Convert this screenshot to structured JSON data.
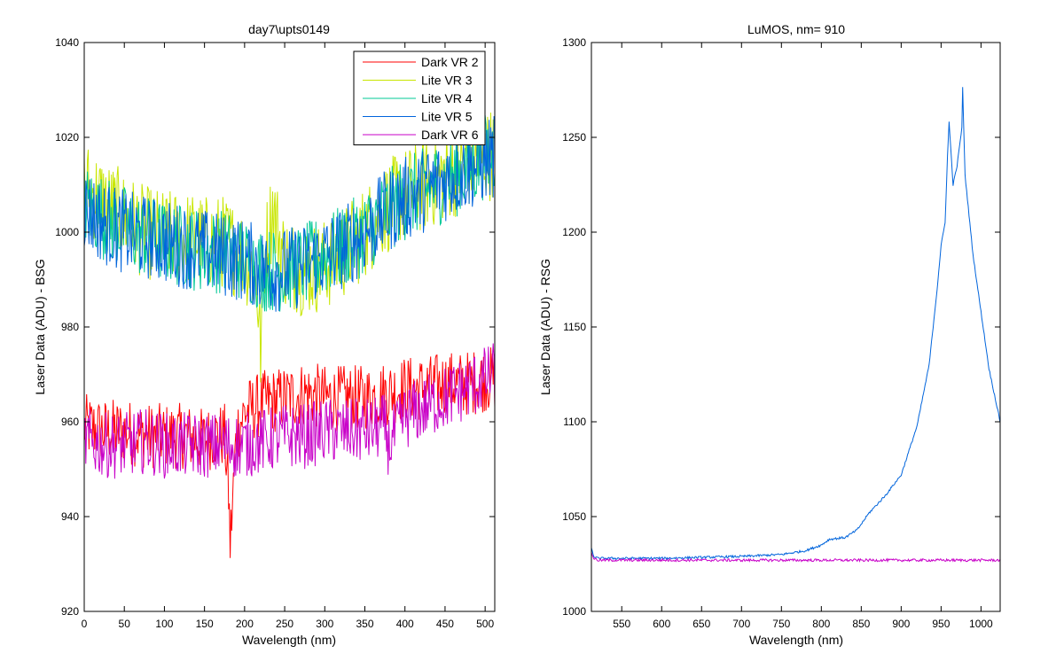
{
  "figure": {
    "background": "#ffffff"
  },
  "chart_data": [
    {
      "type": "line",
      "title": "day7\\upts0149",
      "xlabel": "Wavelength (nm)",
      "ylabel": "Laser Data (ADU) - BSG",
      "xlim": [
        0,
        512
      ],
      "ylim": [
        920,
        1040
      ],
      "xticks": [
        0,
        50,
        100,
        150,
        200,
        250,
        300,
        350,
        400,
        450,
        500
      ],
      "yticks": [
        920,
        940,
        960,
        980,
        1000,
        1020,
        1040
      ],
      "grid": false,
      "legend": {
        "placement": "top-right"
      },
      "series": [
        {
          "name": "Dark VR 2",
          "color": "#ff0000",
          "x": [
            0,
            25,
            50,
            75,
            100,
            125,
            150,
            160,
            175,
            180,
            182,
            190,
            200,
            225,
            250,
            275,
            300,
            325,
            350,
            375,
            400,
            425,
            450,
            475,
            500,
            512
          ],
          "y": [
            959,
            958,
            958,
            957,
            957,
            957,
            956,
            957,
            957,
            945,
            934,
            958,
            962,
            964,
            965,
            966,
            965,
            965,
            965,
            966,
            967,
            967,
            968,
            968,
            969,
            969
          ]
        },
        {
          "name": "Lite VR 3",
          "color": "#c8e600",
          "x": [
            0,
            25,
            50,
            75,
            100,
            125,
            150,
            175,
            200,
            215,
            220,
            225,
            235,
            250,
            275,
            300,
            325,
            350,
            375,
            400,
            425,
            450,
            475,
            500,
            512
          ],
          "y": [
            1010,
            1006,
            1003,
            1000,
            999,
            999,
            998,
            998,
            995,
            990,
            975,
            995,
            1005,
            994,
            992,
            993,
            996,
            1000,
            1005,
            1008,
            1010,
            1012,
            1014,
            1016,
            1017
          ]
        },
        {
          "name": "Lite VR 4",
          "color": "#00c896",
          "x": [
            0,
            25,
            50,
            75,
            100,
            125,
            150,
            175,
            200,
            225,
            250,
            275,
            300,
            325,
            350,
            375,
            400,
            425,
            450,
            475,
            500,
            512
          ],
          "y": [
            1006,
            1003,
            1001,
            999,
            998,
            997,
            996,
            996,
            994,
            992,
            992,
            993,
            995,
            997,
            1000,
            1004,
            1007,
            1009,
            1011,
            1013,
            1016,
            1017
          ]
        },
        {
          "name": "Lite VR 5",
          "color": "#0064dc",
          "x": [
            0,
            25,
            50,
            75,
            100,
            125,
            150,
            175,
            200,
            225,
            250,
            275,
            300,
            325,
            350,
            375,
            400,
            425,
            450,
            475,
            500,
            512
          ],
          "y": [
            1005,
            1002,
            1000,
            999,
            998,
            997,
            996,
            995,
            994,
            992,
            992,
            993,
            995,
            997,
            1000,
            1004,
            1007,
            1009,
            1011,
            1013,
            1015,
            1016
          ]
        },
        {
          "name": "Dark VR 6",
          "color": "#c800c8",
          "x": [
            0,
            25,
            50,
            75,
            100,
            125,
            150,
            175,
            200,
            225,
            250,
            275,
            300,
            325,
            350,
            375,
            380,
            400,
            425,
            450,
            475,
            500,
            512
          ],
          "y": [
            956,
            955,
            955,
            956,
            955,
            955,
            955,
            955,
            955,
            956,
            957,
            957,
            958,
            958,
            958,
            959,
            955,
            961,
            963,
            965,
            967,
            969,
            970
          ]
        }
      ]
    },
    {
      "type": "line",
      "title": "LuMOS, nm= 910",
      "xlabel": "Wavelength (nm)",
      "ylabel": "Laser Data (ADU) - RSG",
      "xlim": [
        512,
        1024
      ],
      "ylim": [
        1000,
        1300
      ],
      "xticks": [
        550,
        600,
        650,
        700,
        750,
        800,
        850,
        900,
        950,
        1000
      ],
      "yticks": [
        1000,
        1050,
        1100,
        1150,
        1200,
        1250,
        1300
      ],
      "grid": false,
      "series": [
        {
          "name": "",
          "color": "#0064dc",
          "x": [
            512,
            515,
            520,
            600,
            700,
            750,
            780,
            800,
            810,
            830,
            845,
            860,
            880,
            900,
            920,
            935,
            945,
            950,
            955,
            958,
            960,
            965,
            970,
            976,
            977,
            980,
            990,
            1000,
            1010,
            1020,
            1024
          ],
          "y": [
            1033,
            1029,
            1028,
            1028,
            1029,
            1030,
            1032,
            1035,
            1038,
            1039,
            1043,
            1052,
            1061,
            1072,
            1098,
            1130,
            1170,
            1193,
            1205,
            1240,
            1258,
            1225,
            1235,
            1255,
            1276,
            1230,
            1188,
            1158,
            1128,
            1108,
            1100
          ]
        },
        {
          "name": "",
          "color": "#c800c8",
          "x": [
            512,
            515,
            520,
            600,
            700,
            800,
            900,
            1000,
            1024
          ],
          "y": [
            1031,
            1028,
            1027,
            1027,
            1027,
            1027,
            1027,
            1027,
            1027
          ]
        }
      ]
    }
  ]
}
